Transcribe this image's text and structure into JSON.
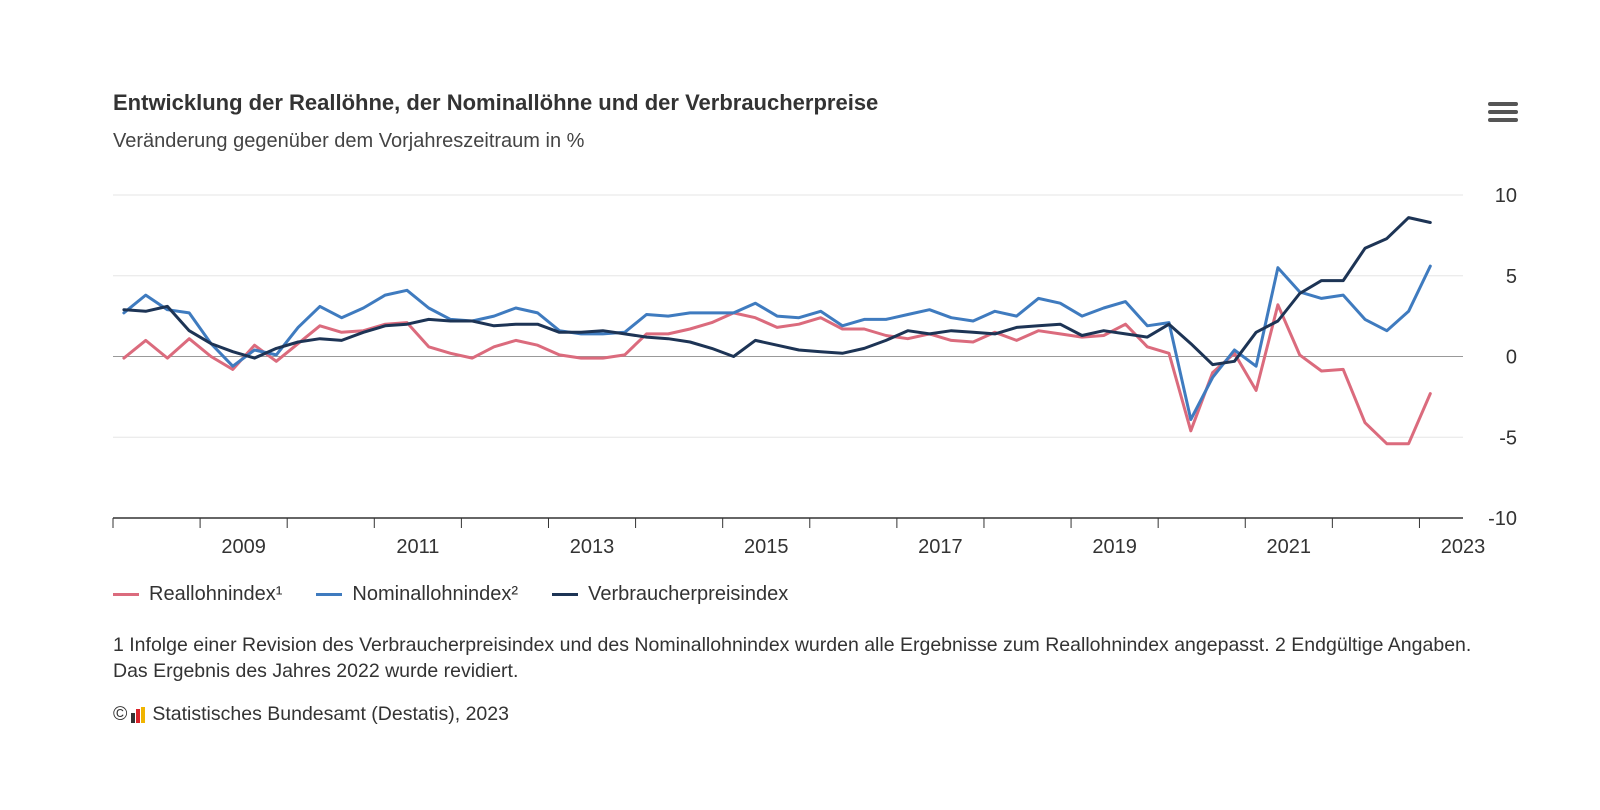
{
  "header": {
    "title": "Entwicklung der Reallöhne, der Nominallöhne und der Verbraucherpreise",
    "subtitle": "Veränderung gegenüber dem Vorjahreszeitraum in %",
    "menu_icon": "hamburger-menu-icon"
  },
  "chart_data": {
    "type": "line",
    "title": "Entwicklung der Reallöhne, der Nominallöhne und der Verbraucherpreise",
    "subtitle": "Veränderung gegenüber dem Vorjahreszeitraum in %",
    "xlabel": "",
    "ylabel": "",
    "x": [
      "2008-Q1",
      "2008-Q2",
      "2008-Q3",
      "2008-Q4",
      "2009-Q1",
      "2009-Q2",
      "2009-Q3",
      "2009-Q4",
      "2010-Q1",
      "2010-Q2",
      "2010-Q3",
      "2010-Q4",
      "2011-Q1",
      "2011-Q2",
      "2011-Q3",
      "2011-Q4",
      "2012-Q1",
      "2012-Q2",
      "2012-Q3",
      "2012-Q4",
      "2013-Q1",
      "2013-Q2",
      "2013-Q3",
      "2013-Q4",
      "2014-Q1",
      "2014-Q2",
      "2014-Q3",
      "2014-Q4",
      "2015-Q1",
      "2015-Q2",
      "2015-Q3",
      "2015-Q4",
      "2016-Q1",
      "2016-Q2",
      "2016-Q3",
      "2016-Q4",
      "2017-Q1",
      "2017-Q2",
      "2017-Q3",
      "2017-Q4",
      "2018-Q1",
      "2018-Q2",
      "2018-Q3",
      "2018-Q4",
      "2019-Q1",
      "2019-Q2",
      "2019-Q3",
      "2019-Q4",
      "2020-Q1",
      "2020-Q2",
      "2020-Q3",
      "2020-Q4",
      "2021-Q1",
      "2021-Q2",
      "2021-Q3",
      "2021-Q4",
      "2022-Q1",
      "2022-Q2",
      "2022-Q3",
      "2022-Q4",
      "2023-Q1"
    ],
    "x_ticks": [
      "2009",
      "2011",
      "2013",
      "2015",
      "2017",
      "2019",
      "2021",
      "2023"
    ],
    "y_ticks": [
      10,
      5,
      0,
      -5,
      -10
    ],
    "ylim": [
      -10,
      10
    ],
    "grid": true,
    "legend_position": "bottom-left",
    "series": [
      {
        "name": "Reallohnindex¹",
        "color": "#db6b7d",
        "values": [
          -0.1,
          1.0,
          -0.1,
          1.1,
          0.0,
          -0.8,
          0.7,
          -0.3,
          0.8,
          1.9,
          1.5,
          1.6,
          2.0,
          2.1,
          0.6,
          0.2,
          -0.1,
          0.6,
          1.0,
          0.7,
          0.1,
          -0.1,
          -0.1,
          0.1,
          1.4,
          1.4,
          1.7,
          2.1,
          2.7,
          2.4,
          1.8,
          2.0,
          2.4,
          1.7,
          1.7,
          1.3,
          1.1,
          1.4,
          1.0,
          0.9,
          1.5,
          1.0,
          1.6,
          1.4,
          1.2,
          1.3,
          2.0,
          0.6,
          0.2,
          -4.6,
          -1.0,
          0.2,
          -2.1,
          3.2,
          0.1,
          -0.9,
          -0.8,
          -4.1,
          -5.4,
          -5.4,
          -2.3
        ]
      },
      {
        "name": "Nominallohnindex²",
        "color": "#3f7bbf",
        "values": [
          2.7,
          3.8,
          2.9,
          2.7,
          0.8,
          -0.6,
          0.4,
          0.1,
          1.8,
          3.1,
          2.4,
          3.0,
          3.8,
          4.1,
          3.0,
          2.3,
          2.2,
          2.5,
          3.0,
          2.7,
          1.6,
          1.4,
          1.4,
          1.5,
          2.6,
          2.5,
          2.7,
          2.7,
          2.7,
          3.3,
          2.5,
          2.4,
          2.8,
          1.9,
          2.3,
          2.3,
          2.6,
          2.9,
          2.4,
          2.2,
          2.8,
          2.5,
          3.6,
          3.3,
          2.5,
          3.0,
          3.4,
          1.9,
          2.1,
          -3.9,
          -1.3,
          0.4,
          -0.6,
          5.5,
          4.0,
          3.6,
          3.8,
          2.3,
          1.6,
          2.8,
          5.6
        ]
      },
      {
        "name": "Verbraucherpreisindex",
        "color": "#1d3455",
        "values": [
          2.9,
          2.8,
          3.1,
          1.6,
          0.8,
          0.3,
          -0.1,
          0.5,
          0.9,
          1.1,
          1.0,
          1.5,
          1.9,
          2.0,
          2.3,
          2.2,
          2.2,
          1.9,
          2.0,
          2.0,
          1.5,
          1.5,
          1.6,
          1.4,
          1.2,
          1.1,
          0.9,
          0.5,
          0.0,
          1.0,
          0.7,
          0.4,
          0.3,
          0.2,
          0.5,
          1.0,
          1.6,
          1.4,
          1.6,
          1.5,
          1.4,
          1.8,
          1.9,
          2.0,
          1.3,
          1.6,
          1.4,
          1.2,
          2.0,
          0.8,
          -0.5,
          -0.3,
          1.5,
          2.2,
          3.9,
          4.7,
          4.7,
          6.7,
          7.3,
          8.6,
          8.3
        ]
      }
    ]
  },
  "footnote": "1 Infolge einer Revision des Verbraucherpreisindex und des Nominallohnindex wurden alle Ergebnisse zum Reallohnindex angepasst. 2 Endgültige Angaben. Das Ergebnis des Jahres 2022 wurde revidiert.",
  "credits": {
    "copyright": "©",
    "text": "Statistisches Bundesamt (Destatis), 2023",
    "logo_colors": [
      "#333333",
      "#d9222a",
      "#f0b400"
    ]
  }
}
